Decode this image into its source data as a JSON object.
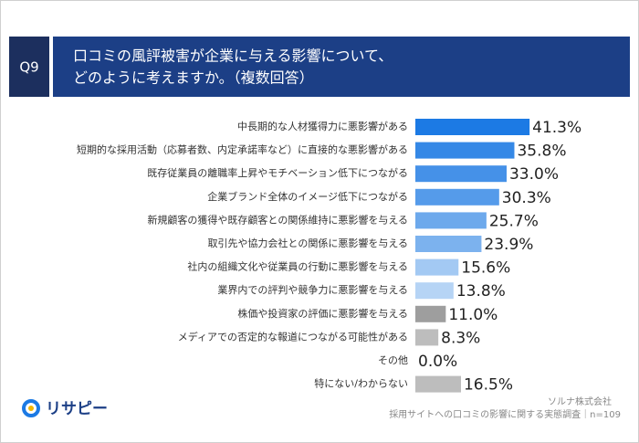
{
  "chart_data": {
    "type": "hbar",
    "question": "Q9",
    "title": [
      "口コミの風評被害が企業に与える影響について、",
      "どのように考えますか。（複数回答）"
    ],
    "categories": [
      "中長期的な人材獲得力に悪影響がある",
      "短期的な採用活動（応募者数、内定承諾率など）に直接的な悪影響がある",
      "既存従業員の離職率上昇やモチベーション低下につながる",
      "企業ブランド全体のイメージ低下につながる",
      "新規顧客の獲得や既存顧客との関係維持に悪影響を与える",
      "取引先や協力会社との関係に悪影響を与える",
      "社内の組織文化や従業員の行動に悪影響を与える",
      "業界内での評判や競争力に悪影響を与える",
      "株価や投資家の評価に悪影響を与える",
      "メディアでの否定的な報道につながる可能性がある",
      "その他",
      "特にない/わからない"
    ],
    "values": [
      41.3,
      35.8,
      33.0,
      30.3,
      25.7,
      23.9,
      15.6,
      13.8,
      11.0,
      8.3,
      0.0,
      16.5
    ],
    "value_labels": [
      "41.3%",
      "35.8%",
      "33.0%",
      "30.3%",
      "25.7%",
      "23.9%",
      "15.6%",
      "13.8%",
      "11.0%",
      "8.3%",
      "0.0%",
      "16.5%"
    ],
    "colors": [
      "#1c7ae4",
      "#3588e6",
      "#4591e8",
      "#559bea",
      "#6da9ec",
      "#7cb2ee",
      "#a3c9f3",
      "#b6d4f5",
      "#9e9e9e",
      "#bdbdbd",
      "#bdbdbd",
      "#bdbdbd"
    ],
    "source": [
      "ソルナ株式会社",
      "採用サイトへの口コミの影響に関する実態調査｜n=109"
    ],
    "logo": "リサピー"
  }
}
